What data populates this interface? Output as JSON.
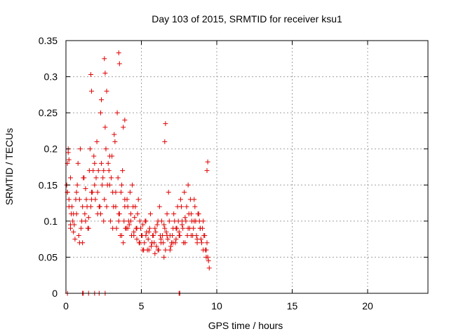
{
  "chart_data": {
    "type": "scatter",
    "title": "Day 103 of 2015, SRMTID for receiver ksu1",
    "xlabel": "GPS time / hours",
    "ylabel": "SRMTID / TECUs",
    "xlim": [
      0,
      24
    ],
    "ylim": [
      0,
      0.35
    ],
    "xticks": [
      0,
      5,
      10,
      15,
      20
    ],
    "yticks": [
      0,
      0.05,
      0.1,
      0.15,
      0.2,
      0.25,
      0.3,
      0.35
    ],
    "xtick_labels": [
      "0",
      "5",
      "10",
      "15",
      "20"
    ],
    "ytick_labels": [
      "0",
      "0.05",
      "0.1",
      "0.15",
      "0.2",
      "0.25",
      "0.3",
      "0.35"
    ],
    "grid": true,
    "marker": "plus",
    "color": "#e00000",
    "series": [
      {
        "name": "SRMTID",
        "x": [
          0.05,
          0.1,
          0.15,
          0.2,
          0.3,
          0.4,
          0.5,
          0.6,
          0.7,
          0.8,
          0.9,
          1.0,
          1.1,
          1.2,
          1.3,
          1.4,
          1.5,
          1.6,
          1.7,
          1.8,
          1.9,
          2.0,
          2.1,
          2.2,
          2.3,
          2.4,
          2.5,
          2.6,
          2.7,
          2.8,
          2.9,
          3.0,
          3.1,
          3.2,
          3.3,
          3.4,
          3.5,
          3.6,
          3.7,
          3.8,
          3.9,
          4.0,
          4.1,
          4.2,
          4.3,
          4.4,
          4.5,
          4.6,
          4.7,
          4.8,
          4.9,
          5.0,
          5.1,
          5.2,
          5.3,
          5.4,
          5.5,
          5.6,
          5.7,
          5.8,
          5.9,
          6.0,
          6.1,
          6.2,
          6.3,
          6.4,
          6.5,
          6.6,
          6.7,
          6.8,
          6.9,
          7.0,
          7.1,
          7.2,
          7.3,
          7.4,
          7.5,
          7.6,
          7.7,
          7.8,
          7.9,
          8.0,
          8.1,
          8.2,
          8.3,
          8.4,
          8.5,
          8.6,
          8.7,
          8.8,
          8.9,
          9.0,
          9.1,
          9.2,
          9.3,
          9.4,
          0.1,
          0.2,
          0.3,
          0.35,
          0.45,
          0.55,
          0.65,
          0.75,
          0.85,
          0.95,
          1.05,
          1.15,
          1.25,
          1.35,
          1.45,
          1.55,
          1.65,
          1.75,
          1.85,
          1.95,
          2.05,
          2.15,
          2.25,
          2.35,
          2.45,
          2.55,
          2.65,
          2.75,
          2.85,
          2.95,
          3.05,
          3.15,
          3.25,
          3.35,
          3.45,
          3.55,
          3.65,
          3.75,
          3.85,
          3.95,
          4.05,
          4.15,
          4.25,
          4.35,
          4.45,
          4.55,
          4.65,
          4.75,
          4.85,
          4.95,
          5.05,
          5.15,
          5.25,
          5.35,
          5.45,
          5.55,
          5.65,
          5.75,
          5.85,
          5.95,
          6.05,
          6.15,
          6.25,
          6.35,
          6.45,
          6.55,
          6.65,
          6.75,
          6.85,
          6.95,
          7.05,
          7.15,
          7.25,
          7.35,
          7.45,
          7.55,
          7.65,
          7.75,
          7.85,
          7.95,
          8.05,
          8.15,
          8.25,
          8.35,
          8.45,
          8.55,
          8.65,
          8.75,
          8.85,
          8.95,
          9.05,
          9.15,
          9.25,
          9.35,
          9.45,
          0.1,
          0.3,
          0.5,
          0.7,
          0.9,
          1.1,
          1.3,
          1.5,
          1.7,
          1.9,
          2.1,
          2.3,
          2.5,
          2.7,
          2.9,
          3.1,
          3.3,
          3.5,
          3.7,
          3.9,
          4.1,
          4.3,
          4.5,
          4.7,
          4.9,
          5.1,
          5.3,
          5.5,
          5.7,
          5.9,
          6.1,
          6.3,
          6.5,
          6.7,
          6.9,
          7.1,
          7.3,
          7.5,
          7.7,
          7.9,
          8.1,
          8.3,
          8.5,
          8.7,
          8.9,
          9.1,
          9.3,
          2.55,
          2.6,
          3.5,
          3.55,
          1.65,
          1.7,
          2.35,
          0.15,
          0.2,
          6.6,
          6.55,
          3.8,
          3.9,
          9.4,
          9.35,
          9.5,
          0.1,
          1.1,
          1.15,
          1.5,
          1.9,
          2.2,
          2.6,
          7.5,
          7.55
        ],
        "y": [
          0.15,
          0.14,
          0.2,
          0.13,
          0.095,
          0.12,
          0.085,
          0.075,
          0.11,
          0.18,
          0.13,
          0.09,
          0.07,
          0.16,
          0.145,
          0.12,
          0.105,
          0.2,
          0.14,
          0.17,
          0.18,
          0.16,
          0.11,
          0.12,
          0.25,
          0.15,
          0.1,
          0.23,
          0.28,
          0.18,
          0.19,
          0.16,
          0.14,
          0.22,
          0.12,
          0.25,
          0.1,
          0.08,
          0.15,
          0.07,
          0.13,
          0.09,
          0.12,
          0.095,
          0.11,
          0.15,
          0.085,
          0.12,
          0.075,
          0.13,
          0.1,
          0.08,
          0.095,
          0.07,
          0.1,
          0.06,
          0.085,
          0.11,
          0.07,
          0.08,
          0.09,
          0.065,
          0.1,
          0.12,
          0.075,
          0.08,
          0.095,
          0.06,
          0.11,
          0.14,
          0.08,
          0.07,
          0.09,
          0.1,
          0.075,
          0.12,
          0.085,
          0.13,
          0.095,
          0.07,
          0.105,
          0.12,
          0.15,
          0.09,
          0.11,
          0.08,
          0.13,
          0.1,
          0.075,
          0.11,
          0.09,
          0.07,
          0.1,
          0.08,
          0.06,
          0.05,
          0.14,
          0.12,
          0.16,
          0.11,
          0.1,
          0.095,
          0.13,
          0.15,
          0.08,
          0.2,
          0.1,
          0.16,
          0.11,
          0.13,
          0.09,
          0.17,
          0.12,
          0.14,
          0.19,
          0.13,
          0.21,
          0.17,
          0.12,
          0.18,
          0.16,
          0.13,
          0.2,
          0.15,
          0.17,
          0.1,
          0.19,
          0.12,
          0.21,
          0.09,
          0.16,
          0.11,
          0.14,
          0.17,
          0.1,
          0.09,
          0.13,
          0.1,
          0.14,
          0.08,
          0.12,
          0.105,
          0.09,
          0.11,
          0.07,
          0.09,
          0.08,
          0.06,
          0.1,
          0.085,
          0.075,
          0.09,
          0.065,
          0.08,
          0.07,
          0.085,
          0.095,
          0.06,
          0.08,
          0.1,
          0.07,
          0.09,
          0.085,
          0.075,
          0.1,
          0.065,
          0.08,
          0.11,
          0.07,
          0.09,
          0.1,
          0.08,
          0.12,
          0.09,
          0.14,
          0.1,
          0.08,
          0.11,
          0.13,
          0.1,
          0.09,
          0.12,
          0.08,
          0.11,
          0.1,
          0.075,
          0.09,
          0.08,
          0.06,
          0.07,
          0.045,
          0.18,
          0.09,
          0.11,
          0.14,
          0.07,
          0.12,
          0.1,
          0.09,
          0.13,
          0.15,
          0.14,
          0.11,
          0.17,
          0.12,
          0.15,
          0.09,
          0.14,
          0.11,
          0.08,
          0.12,
          0.09,
          0.1,
          0.08,
          0.09,
          0.07,
          0.06,
          0.08,
          0.06,
          0.07,
          0.055,
          0.06,
          0.07,
          0.05,
          0.08,
          0.06,
          0.07,
          0.09,
          0.08,
          0.1,
          0.07,
          0.09,
          0.08,
          0.1,
          0.07,
          0.09,
          0.06,
          0.05,
          0.325,
          0.305,
          0.333,
          0.318,
          0.303,
          0.28,
          0.268,
          0.195,
          0.185,
          0.235,
          0.21,
          0.23,
          0.24,
          0.182,
          0.17,
          0.035,
          0.0,
          0.0,
          0.0,
          0.0,
          0.0,
          0.0,
          0.0,
          0.0,
          0.0
        ]
      }
    ]
  }
}
